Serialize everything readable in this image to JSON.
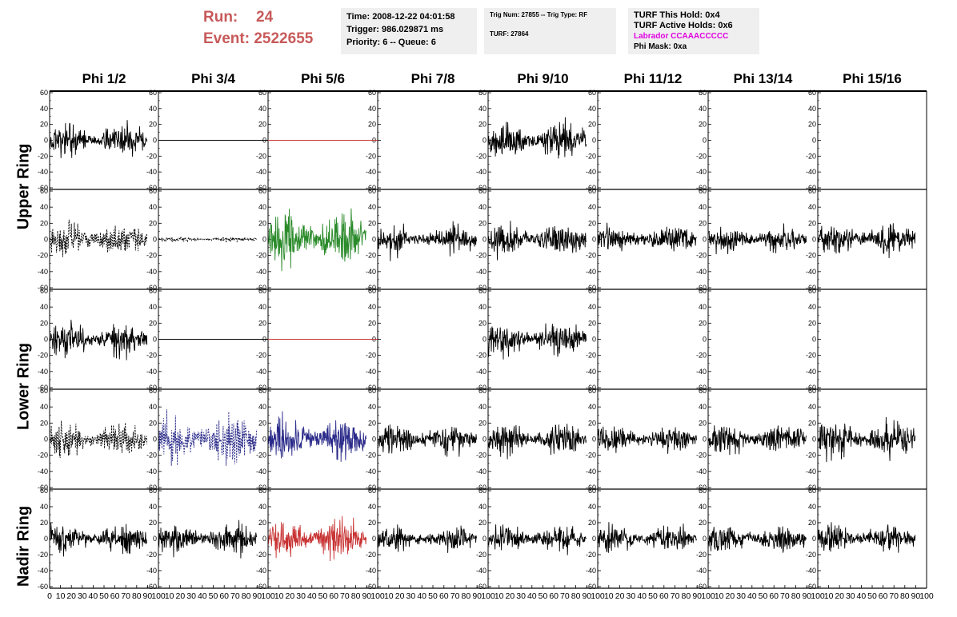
{
  "run": {
    "run_label": "Run:",
    "run_value": "24",
    "event_label": "Event:",
    "event_value": "2522655"
  },
  "info_time": {
    "line1": "Time: 2008-12-22 04:01:58",
    "line2": "Trigger: 986.029871 ms",
    "line3": "Priority: 6 -- Queue: 6"
  },
  "info_trig": {
    "line1": "Trig Num: 27855 -- Trig Type: RF",
    "line2": "TURF: 27864"
  },
  "info_turf": {
    "line1": "TURF This Hold: 0x4",
    "line2": "TURF Active Holds: 0x6",
    "line3": "Labrador CCAAACCCCC",
    "line4": "Phi Mask: 0xa"
  },
  "ring_labels": {
    "upper": "Upper Ring",
    "lower": "Lower Ring",
    "nadir": "Nadir Ring"
  },
  "colors": {
    "title_red": "#c85a5a",
    "magenta": "#e000e0",
    "green": "#2a8a2a",
    "blue": "#2a2a8a",
    "red": "#c83232",
    "black": "#000000",
    "info_bg": "#efefef"
  },
  "chart_data": {
    "type": "line",
    "columns": [
      "Phi 1/2",
      "Phi 3/4",
      "Phi 5/6",
      "Phi 7/8",
      "Phi 9/10",
      "Phi 11/12",
      "Phi 13/14",
      "Phi 15/16"
    ],
    "xlim": [
      0,
      100
    ],
    "ylim": [
      -60,
      60
    ],
    "x_ticks": [
      0,
      10,
      20,
      30,
      40,
      50,
      60,
      70,
      80,
      90,
      100
    ],
    "y_ticks": [
      60,
      40,
      20,
      0,
      -20,
      -40,
      -60
    ],
    "grid": false,
    "panels": [
      [
        {
          "style": "solid",
          "color": "black",
          "amp": 13,
          "seed": 11
        },
        {
          "style": "flat",
          "color": "black"
        },
        {
          "style": "flat",
          "color": "red"
        },
        {
          "style": "empty"
        },
        {
          "style": "solid",
          "color": "black",
          "amp": 15,
          "seed": 15
        },
        {
          "style": "empty"
        },
        {
          "style": "empty"
        },
        {
          "style": "empty"
        }
      ],
      [
        {
          "style": "dashed",
          "color": "black",
          "amp": 14,
          "seed": 21
        },
        {
          "style": "dashed",
          "color": "black",
          "amp": 2,
          "seed": 22
        },
        {
          "style": "solid",
          "color": "green",
          "amp": 22,
          "seed": 23
        },
        {
          "style": "solid",
          "color": "black",
          "amp": 12,
          "seed": 24
        },
        {
          "style": "solid",
          "color": "black",
          "amp": 13,
          "seed": 25
        },
        {
          "style": "solid",
          "color": "black",
          "amp": 11,
          "seed": 26
        },
        {
          "style": "solid",
          "color": "black",
          "amp": 10,
          "seed": 27
        },
        {
          "style": "solid",
          "color": "black",
          "amp": 12,
          "seed": 28
        }
      ],
      [
        {
          "style": "solid",
          "color": "black",
          "amp": 13,
          "seed": 31
        },
        {
          "style": "flat",
          "color": "black"
        },
        {
          "style": "flat",
          "color": "red"
        },
        {
          "style": "empty"
        },
        {
          "style": "solid",
          "color": "black",
          "amp": 14,
          "seed": 35
        },
        {
          "style": "empty"
        },
        {
          "style": "empty"
        },
        {
          "style": "empty"
        }
      ],
      [
        {
          "style": "dashed",
          "color": "black",
          "amp": 14,
          "seed": 41
        },
        {
          "style": "dashed",
          "color": "blue",
          "amp": 20,
          "seed": 42
        },
        {
          "style": "solid",
          "color": "blue",
          "amp": 17,
          "seed": 43
        },
        {
          "style": "solid",
          "color": "black",
          "amp": 12,
          "seed": 44
        },
        {
          "style": "solid",
          "color": "black",
          "amp": 13,
          "seed": 45
        },
        {
          "style": "solid",
          "color": "black",
          "amp": 10,
          "seed": 46
        },
        {
          "style": "solid",
          "color": "black",
          "amp": 12,
          "seed": 47
        },
        {
          "style": "solid",
          "color": "black",
          "amp": 14,
          "seed": 48
        }
      ],
      [
        {
          "style": "solid",
          "color": "black",
          "amp": 12,
          "seed": 51
        },
        {
          "style": "solid",
          "color": "black",
          "amp": 13,
          "seed": 52
        },
        {
          "style": "solid",
          "color": "red",
          "amp": 16,
          "seed": 53
        },
        {
          "style": "solid",
          "color": "black",
          "amp": 10,
          "seed": 54
        },
        {
          "style": "solid",
          "color": "black",
          "amp": 11,
          "seed": 55
        },
        {
          "style": "solid",
          "color": "black",
          "amp": 11,
          "seed": 56
        },
        {
          "style": "solid",
          "color": "black",
          "amp": 11,
          "seed": 57
        },
        {
          "style": "solid",
          "color": "black",
          "amp": 12,
          "seed": 58
        }
      ]
    ]
  }
}
